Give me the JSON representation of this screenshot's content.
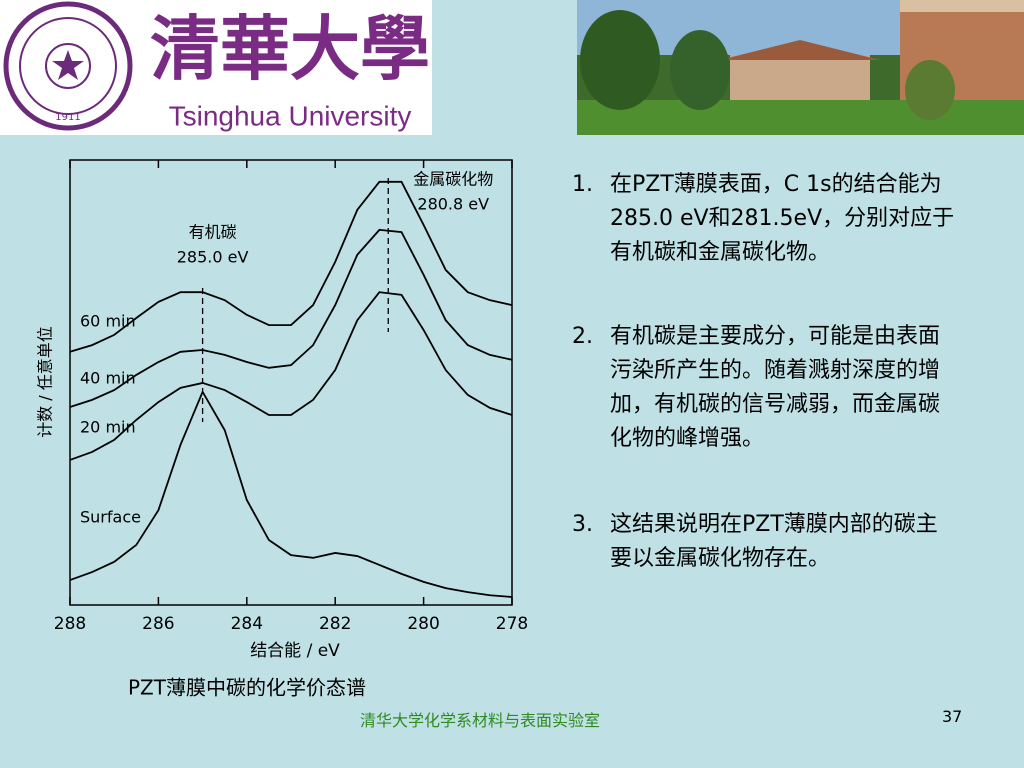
{
  "header": {
    "logo_chinese": "清華大學",
    "logo_english": "Tsinghua University",
    "seal_year": "1911"
  },
  "chart_data": {
    "type": "line",
    "caption": "PZT薄膜中碳的化学价态谱",
    "x_label": "结合能  / eV",
    "y_label": "计数 / 任意单位",
    "x": [
      288,
      287.5,
      287,
      286.5,
      286,
      285.5,
      285,
      284.5,
      284,
      283.5,
      283,
      282.5,
      282,
      281.5,
      281,
      280.5,
      280,
      279.5,
      279,
      278.5,
      278
    ],
    "xlim": [
      288,
      278
    ],
    "xticks": [
      288,
      286,
      284,
      282,
      280,
      278
    ],
    "ylim": [
      0,
      100
    ],
    "series": [
      {
        "name": "Surface",
        "color": "#000000",
        "values": [
          5.6,
          7.4,
          9.7,
          13.5,
          21.3,
          36,
          47.9,
          39.3,
          23.6,
          14.6,
          11.2,
          10.6,
          11.7,
          11,
          9,
          7,
          5.2,
          3.8,
          2.9,
          2.2,
          1.8
        ]
      },
      {
        "name": "20 min",
        "color": "#000000",
        "values": [
          32.6,
          34.4,
          37.1,
          41.6,
          45.6,
          48.8,
          49.9,
          48.3,
          45.6,
          42.7,
          42.7,
          46.1,
          52.8,
          64,
          70.3,
          69.7,
          61.8,
          52.8,
          47.2,
          44.3,
          42.7
        ]
      },
      {
        "name": "40 min",
        "color": "#000000",
        "values": [
          44.5,
          46.1,
          48.3,
          51.7,
          54.6,
          56.9,
          57.3,
          56.2,
          54.6,
          53.3,
          53.9,
          58.4,
          67.4,
          78.7,
          84.3,
          83.8,
          74.2,
          64,
          58.4,
          56.2,
          55.1
        ]
      },
      {
        "name": "60 min",
        "color": "#000000",
        "values": [
          56.9,
          58.4,
          60.7,
          64.5,
          68.1,
          70.3,
          70.3,
          68.5,
          65.2,
          62.9,
          62.9,
          67.4,
          77.1,
          88.8,
          95.1,
          95.1,
          85.4,
          75.3,
          70.3,
          68.5,
          67.4
        ]
      }
    ],
    "annotations": [
      {
        "text": "有机碳",
        "value_label": "285.0 eV",
        "x": 285.0
      },
      {
        "text": "金属碳化物",
        "value_label": "280.8 eV",
        "x": 280.8
      }
    ]
  },
  "notes": [
    {
      "number": "1.",
      "text": "在PZT薄膜表面，C 1s的结合能为285.0 eV和281.5eV，分别对应于有机碳和金属碳化物。"
    },
    {
      "number": "2.",
      "text": "有机碳是主要成分，可能是由表面污染所产生的。随着溅射深度的增加，有机碳的信号减弱，而金属碳化物的峰增强。"
    },
    {
      "number": "3.",
      "text": "这结果说明在PZT薄膜内部的碳主要以金属碳化物存在。"
    }
  ],
  "footer": {
    "lab": "清华大学化学系材料与表面实验室",
    "page": "37"
  }
}
